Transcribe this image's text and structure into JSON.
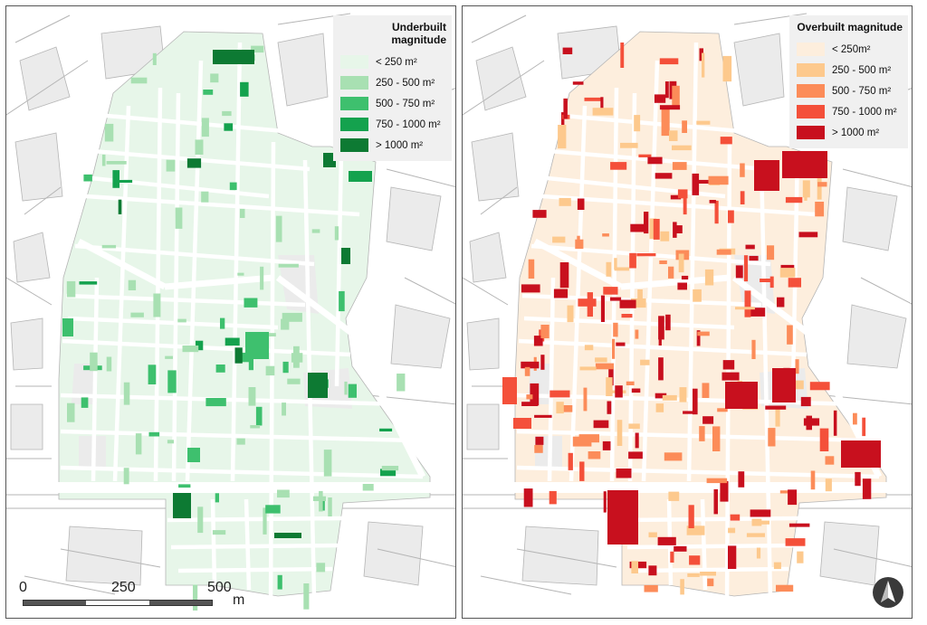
{
  "maps": [
    {
      "id": "underbuilt",
      "legend": {
        "title": "Underbuilt magnitude",
        "classes": [
          {
            "label": "< 250 m²",
            "color": "#e7f6e9"
          },
          {
            "label": "250 - 500 m²",
            "color": "#a8e0b2"
          },
          {
            "label": "500 - 750 m²",
            "color": "#3ec06e"
          },
          {
            "label": "750 - 1000 m²",
            "color": "#14a24e"
          },
          {
            "label": "> 1000 m²",
            "color": "#0d7a33"
          }
        ]
      }
    },
    {
      "id": "overbuilt",
      "legend": {
        "title": "Overbuilt magnitude",
        "classes": [
          {
            "label": "< 250m²",
            "color": "#fdeedd"
          },
          {
            "label": "250 - 500 m²",
            "color": "#fdc98d"
          },
          {
            "label": "500 - 750 m²",
            "color": "#fc8c59"
          },
          {
            "label": "750 - 1000 m²",
            "color": "#f4503a"
          },
          {
            "label": "> 1000 m²",
            "color": "#c8101e"
          }
        ]
      }
    }
  ],
  "scale_bar": {
    "labels": [
      "0",
      "250",
      "500"
    ],
    "unit": "m",
    "colors": [
      "#555555",
      "#ffffff",
      "#555555"
    ]
  },
  "north_arrow": {
    "icon": "north-arrow-icon"
  },
  "colors": {
    "background_block": "#ebebeb",
    "street": "#ffffff",
    "outline": "#b5b5b5"
  }
}
